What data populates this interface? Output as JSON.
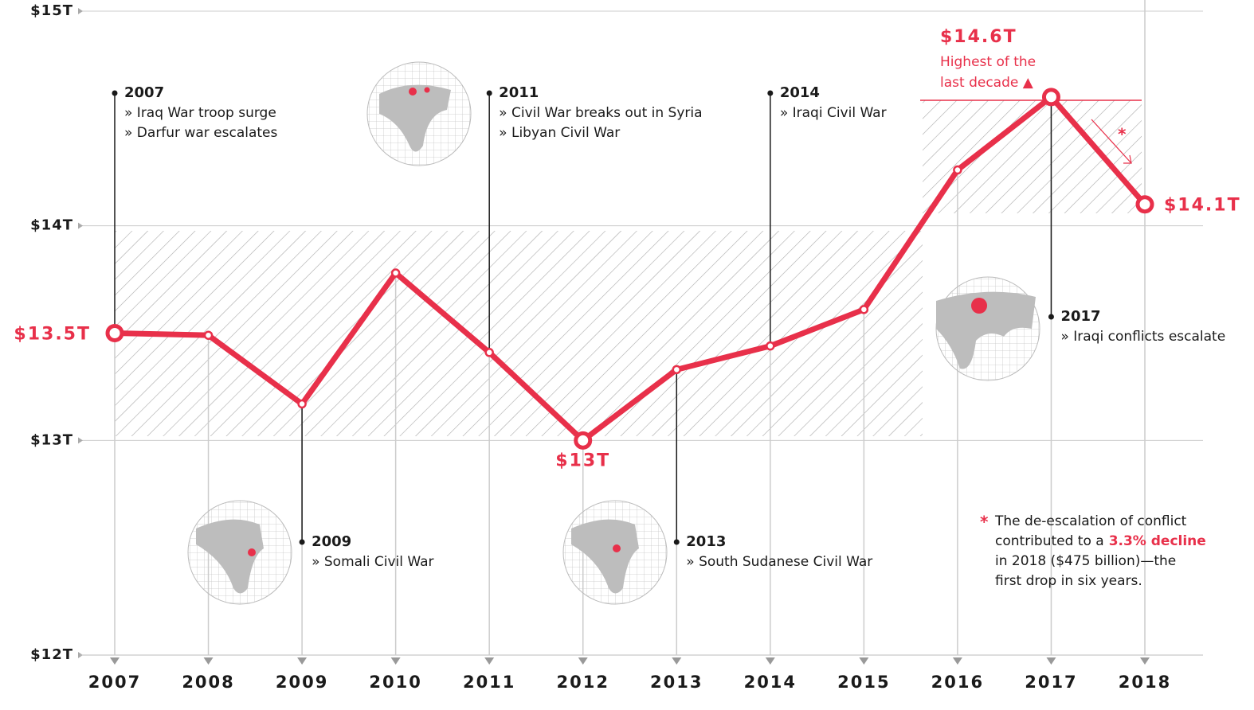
{
  "chart_data": {
    "type": "line",
    "categories": [
      "2007",
      "2008",
      "2009",
      "2010",
      "2011",
      "2012",
      "2013",
      "2014",
      "2015",
      "2016",
      "2017",
      "2018"
    ],
    "series": [
      {
        "color": "#e8304a",
        "values": [
          13.5,
          13.49,
          13.17,
          13.78,
          13.41,
          13.0,
          13.33,
          13.44,
          13.61,
          14.26,
          14.6,
          14.1
        ],
        "value_labels": [
          "$13.5T",
          null,
          null,
          null,
          null,
          "$13T",
          null,
          null,
          null,
          null,
          "$14.6T",
          "$14.1T"
        ]
      }
    ],
    "ylim": [
      12,
      15
    ],
    "yticks": [
      {
        "value": 12,
        "label": "$12T"
      },
      {
        "value": 13,
        "label": "$13T"
      },
      {
        "value": 14,
        "label": "$14T"
      },
      {
        "value": 15,
        "label": "$15T"
      }
    ],
    "grid": true,
    "highlight_note": [
      "Highest of the",
      "last decade ▲"
    ],
    "events": [
      {
        "year": "2007",
        "lines": [
          "» Iraq War troop surge",
          "» Darfur war escalates"
        ]
      },
      {
        "year": "2009",
        "lines": [
          "» Somali Civil War"
        ]
      },
      {
        "year": "2011",
        "lines": [
          "» Civil War breaks out in Syria",
          "» Libyan Civil War"
        ]
      },
      {
        "year": "2013",
        "lines": [
          "» South Sudanese Civil War"
        ]
      },
      {
        "year": "2014",
        "lines": [
          "» Iraqi Civil War"
        ]
      },
      {
        "year": "2017",
        "lines": [
          "» Iraqi conflicts escalate"
        ]
      }
    ],
    "footnote": {
      "marker": "*",
      "lines": [
        "The de-escalation of conflict",
        "contributed to a",
        "in 2018 ($475 billion)—the",
        "first drop in six years."
      ],
      "highlight": "3.3% decline"
    }
  }
}
